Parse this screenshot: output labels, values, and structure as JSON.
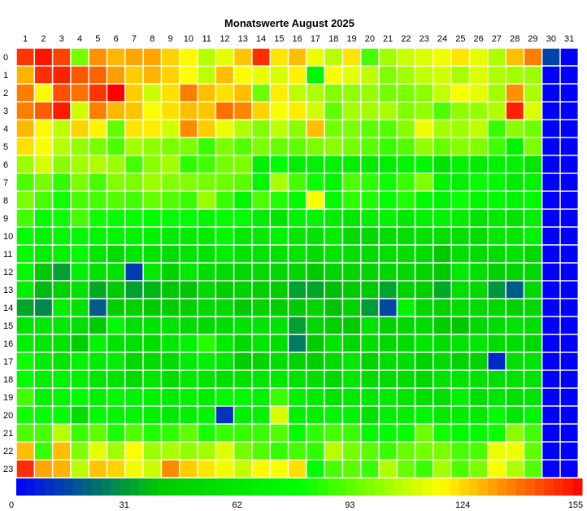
{
  "chart_data": {
    "type": "heatmap",
    "title": "Monatswerte August 2025",
    "x_categories": [
      "1",
      "2",
      "3",
      "4",
      "5",
      "6",
      "7",
      "8",
      "9",
      "10",
      "11",
      "12",
      "13",
      "14",
      "15",
      "16",
      "17",
      "18",
      "19",
      "20",
      "21",
      "22",
      "23",
      "24",
      "25",
      "26",
      "27",
      "28",
      "29",
      "30",
      "31"
    ],
    "y_categories": [
      "0",
      "1",
      "2",
      "3",
      "4",
      "5",
      "6",
      "7",
      "8",
      "9",
      "10",
      "11",
      "12",
      "13",
      "14",
      "15",
      "16",
      "17",
      "18",
      "19",
      "20",
      "21",
      "22",
      "23"
    ],
    "values": [
      [
        147,
        152,
        145,
        95,
        133,
        127,
        130,
        130,
        123,
        117,
        105,
        112,
        125,
        148,
        120,
        126,
        113,
        105,
        120,
        88,
        102,
        108,
        111,
        114,
        120,
        112,
        104,
        126,
        136,
        13,
        0
      ],
      [
        128,
        148,
        150,
        142,
        140,
        131,
        124,
        128,
        123,
        116,
        106,
        126,
        117,
        113,
        110,
        118,
        71,
        115,
        112,
        106,
        97,
        102,
        107,
        109,
        103,
        111,
        104,
        102,
        101,
        0,
        0
      ],
      [
        136,
        117,
        143,
        138,
        147,
        155,
        124,
        108,
        121,
        136,
        126,
        121,
        126,
        94,
        119,
        106,
        104,
        97,
        99,
        100,
        95,
        96,
        99,
        107,
        115,
        112,
        102,
        133,
        103,
        0,
        0
      ],
      [
        136,
        141,
        151,
        109,
        136,
        127,
        125,
        115,
        121,
        126,
        125,
        138,
        135,
        123,
        115,
        119,
        109,
        92,
        102,
        102,
        103,
        97,
        100,
        89,
        99,
        100,
        104,
        150,
        111,
        0,
        0
      ],
      [
        127,
        117,
        106,
        123,
        118,
        92,
        120,
        119,
        109,
        134,
        124,
        113,
        104,
        97,
        106,
        98,
        126,
        95,
        96,
        91,
        90,
        98,
        114,
        102,
        101,
        106,
        86,
        98,
        94,
        0,
        0
      ],
      [
        121,
        115,
        105,
        100,
        96,
        89,
        102,
        99,
        96,
        96,
        86,
        96,
        90,
        96,
        93,
        92,
        96,
        98,
        95,
        91,
        86,
        90,
        100,
        93,
        98,
        97,
        87,
        70,
        96,
        0,
        0
      ],
      [
        101,
        110,
        98,
        102,
        104,
        101,
        88,
        98,
        102,
        84,
        87,
        95,
        96,
        68,
        76,
        66,
        67,
        70,
        67,
        65,
        66,
        71,
        73,
        58,
        69,
        64,
        68,
        69,
        61,
        0,
        0
      ],
      [
        89,
        95,
        84,
        96,
        88,
        97,
        96,
        101,
        97,
        97,
        95,
        94,
        91,
        73,
        103,
        88,
        79,
        72,
        89,
        84,
        79,
        86,
        97,
        71,
        68,
        78,
        75,
        65,
        69,
        0,
        0
      ],
      [
        96,
        88,
        80,
        88,
        88,
        90,
        87,
        93,
        90,
        86,
        101,
        86,
        72,
        89,
        82,
        74,
        115,
        75,
        84,
        82,
        78,
        82,
        74,
        69,
        79,
        72,
        76,
        71,
        75,
        0,
        0
      ],
      [
        87,
        76,
        79,
        88,
        80,
        78,
        78,
        76,
        76,
        76,
        72,
        76,
        77,
        66,
        60,
        69,
        72,
        65,
        62,
        67,
        71,
        63,
        70,
        69,
        67,
        57,
        63,
        57,
        66,
        0,
        0
      ],
      [
        77,
        69,
        73,
        75,
        71,
        72,
        70,
        68,
        64,
        65,
        65,
        73,
        63,
        64,
        69,
        62,
        59,
        66,
        53,
        50,
        54,
        55,
        58,
        55,
        56,
        54,
        62,
        61,
        69,
        0,
        0
      ],
      [
        75,
        66,
        70,
        75,
        60,
        53,
        60,
        57,
        53,
        59,
        58,
        66,
        58,
        58,
        58,
        60,
        53,
        59,
        55,
        53,
        55,
        54,
        52,
        39,
        55,
        52,
        54,
        58,
        51,
        0,
        0
      ],
      [
        75,
        41,
        31,
        68,
        58,
        58,
        12,
        62,
        47,
        62,
        56,
        53,
        49,
        52,
        50,
        49,
        41,
        48,
        49,
        48,
        49,
        50,
        48,
        40,
        65,
        56,
        47,
        48,
        50,
        0,
        0
      ],
      [
        67,
        36,
        45,
        57,
        33,
        41,
        31,
        35,
        39,
        38,
        51,
        43,
        47,
        44,
        43,
        31,
        32,
        37,
        40,
        41,
        32,
        45,
        44,
        33,
        55,
        50,
        29,
        18,
        50,
        0,
        0
      ],
      [
        32,
        27,
        67,
        57,
        18,
        44,
        46,
        40,
        42,
        46,
        50,
        53,
        41,
        48,
        43,
        41,
        48,
        38,
        47,
        30,
        14,
        71,
        50,
        47,
        54,
        53,
        49,
        45,
        50,
        0,
        0
      ],
      [
        60,
        61,
        62,
        56,
        40,
        74,
        56,
        57,
        58,
        53,
        50,
        54,
        57,
        60,
        57,
        31,
        49,
        44,
        41,
        57,
        45,
        50,
        53,
        42,
        39,
        50,
        52,
        57,
        54,
        0,
        0
      ],
      [
        66,
        60,
        59,
        44,
        71,
        57,
        56,
        56,
        62,
        69,
        83,
        65,
        51,
        61,
        56,
        24,
        42,
        57,
        49,
        54,
        51,
        53,
        60,
        53,
        57,
        60,
        53,
        53,
        50,
        0,
        0
      ],
      [
        80,
        64,
        61,
        70,
        64,
        66,
        50,
        53,
        53,
        64,
        68,
        63,
        44,
        49,
        56,
        47,
        44,
        53,
        63,
        47,
        54,
        54,
        46,
        52,
        48,
        47,
        8,
        56,
        57,
        0,
        0
      ],
      [
        76,
        66,
        70,
        68,
        60,
        59,
        53,
        60,
        53,
        63,
        60,
        55,
        58,
        60,
        62,
        57,
        55,
        49,
        62,
        53,
        53,
        53,
        49,
        57,
        59,
        58,
        56,
        57,
        58,
        0,
        0
      ],
      [
        87,
        70,
        73,
        76,
        68,
        75,
        71,
        68,
        64,
        70,
        66,
        74,
        74,
        70,
        86,
        68,
        64,
        59,
        63,
        62,
        64,
        60,
        56,
        55,
        68,
        56,
        60,
        55,
        58,
        0,
        0
      ],
      [
        80,
        77,
        76,
        55,
        74,
        71,
        72,
        67,
        63,
        67,
        69,
        10,
        68,
        70,
        110,
        68,
        68,
        72,
        69,
        58,
        66,
        66,
        71,
        63,
        65,
        63,
        77,
        61,
        71,
        0,
        0
      ],
      [
        89,
        88,
        105,
        86,
        92,
        81,
        90,
        82,
        84,
        92,
        81,
        86,
        85,
        86,
        90,
        77,
        84,
        88,
        86,
        74,
        77,
        78,
        94,
        80,
        75,
        76,
        79,
        98,
        87,
        0,
        0
      ],
      [
        126,
        86,
        126,
        97,
        112,
        102,
        116,
        101,
        103,
        100,
        102,
        111,
        95,
        90,
        85,
        88,
        84,
        105,
        95,
        91,
        86,
        93,
        95,
        96,
        88,
        89,
        113,
        114,
        92,
        0,
        0
      ],
      [
        148,
        130,
        128,
        105,
        125,
        123,
        114,
        108,
        134,
        124,
        120,
        114,
        107,
        117,
        115,
        121,
        77,
        89,
        91,
        86,
        104,
        93,
        86,
        102,
        89,
        96,
        115,
        104,
        90,
        0,
        0
      ]
    ],
    "color_range": [
      0,
      155
    ],
    "colorbar_ticks": [
      0,
      31,
      62,
      93,
      124,
      155
    ],
    "color_scale": [
      "#0000ff",
      "#00c800",
      "#00ff00",
      "#ffff00",
      "#ff0000"
    ],
    "grid": true,
    "legend": "bottom"
  }
}
